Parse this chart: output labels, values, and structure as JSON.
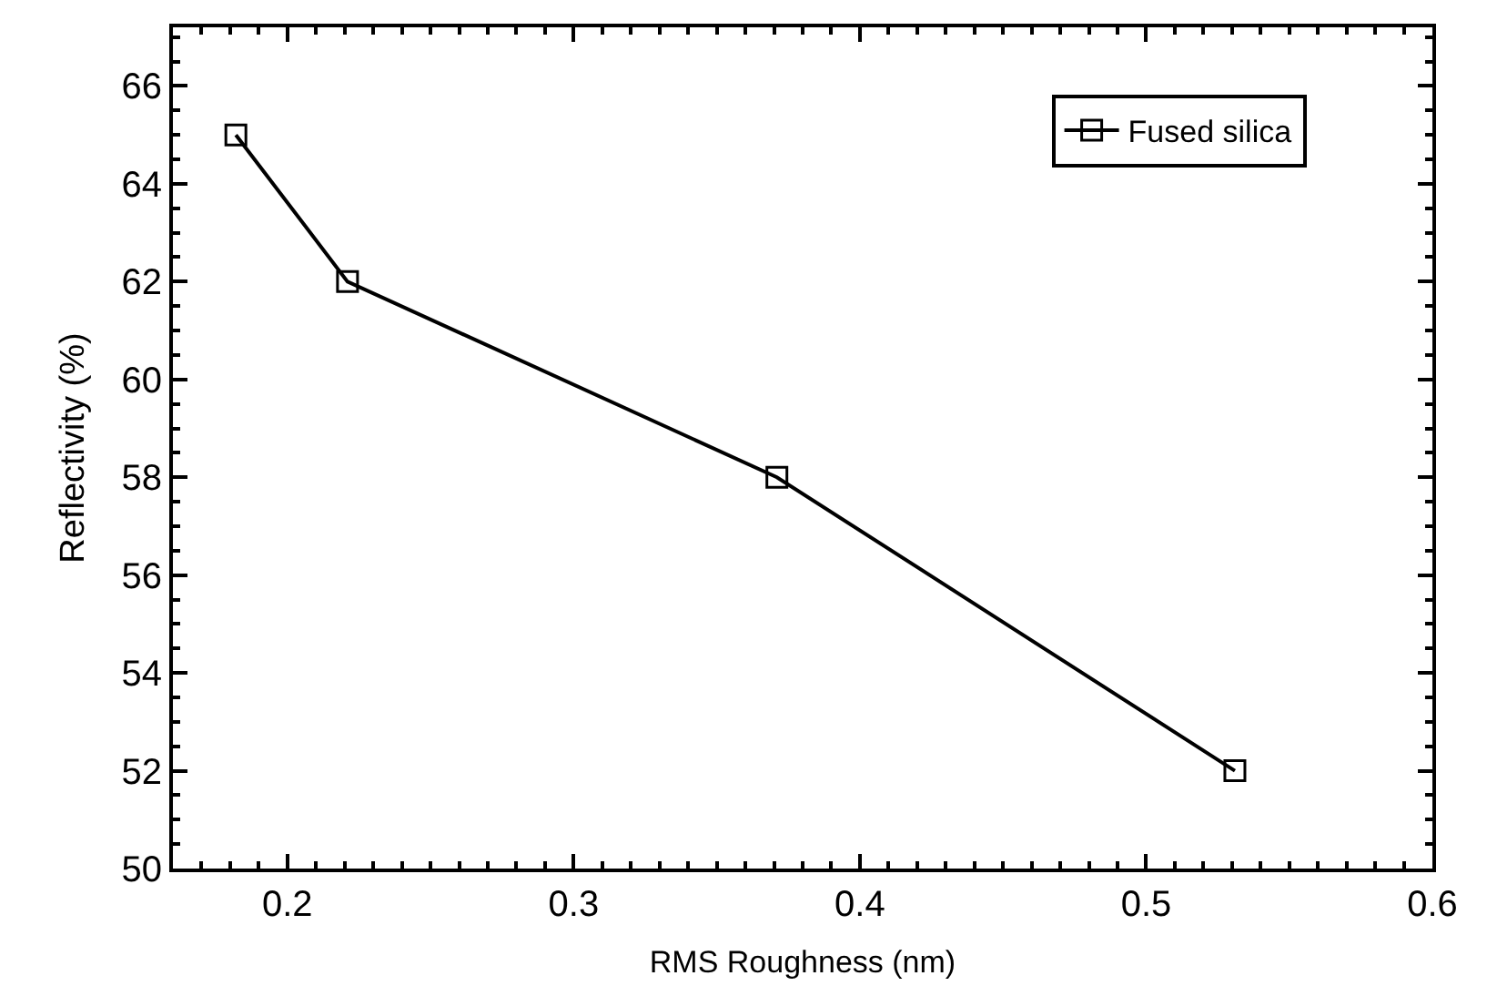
{
  "chart_data": {
    "type": "line",
    "xlabel": "RMS Roughness (nm)",
    "ylabel": "Reflectivity (%)",
    "x": [
      0.182,
      0.221,
      0.371,
      0.531
    ],
    "series": [
      {
        "name": "Fused silica",
        "color": "#000000",
        "values": [
          65,
          62,
          58,
          52
        ]
      }
    ],
    "xlim": [
      0.16,
      0.6
    ],
    "xticks": [
      0.2,
      0.3,
      0.4,
      0.5,
      0.6
    ],
    "ylim": [
      50,
      67.2
    ],
    "yticks": [
      50,
      52,
      54,
      56,
      58,
      60,
      62,
      64,
      66
    ],
    "legend": "top right",
    "marker": "square",
    "line_style": "solid"
  }
}
